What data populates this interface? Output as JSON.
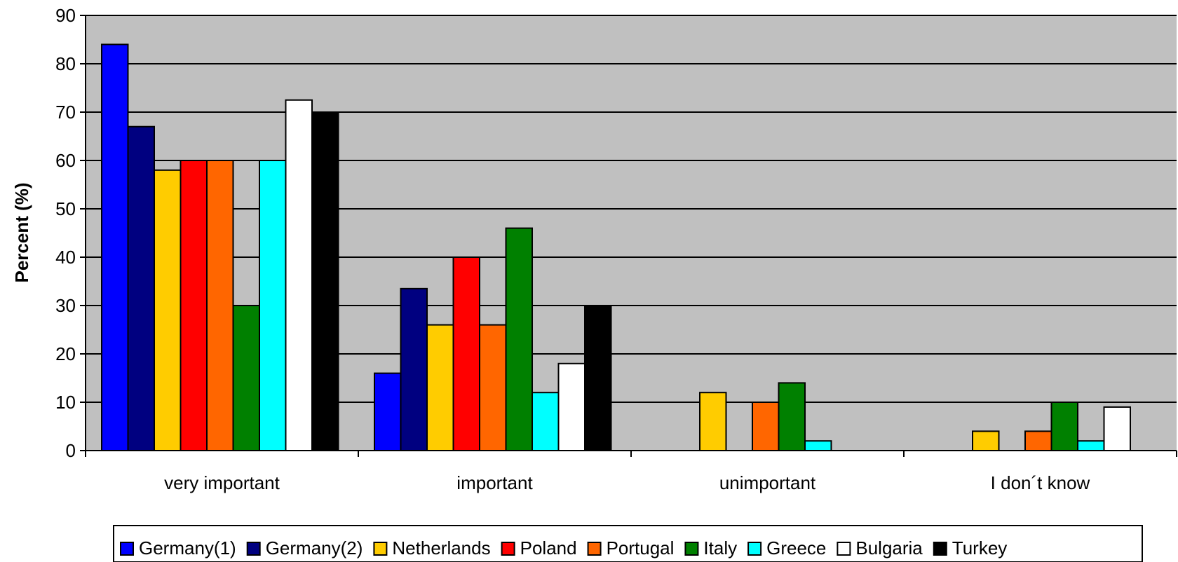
{
  "chart_data": {
    "type": "bar",
    "ylabel": "Percent (%)",
    "xlabel": "",
    "ylim": [
      0,
      90
    ],
    "yticks": [
      0,
      10,
      20,
      30,
      40,
      50,
      60,
      70,
      80,
      90
    ],
    "grid": true,
    "legend_position": "bottom",
    "plot_background": "#C0C0C0",
    "categories": [
      "very important",
      "important",
      "unimportant",
      "I don´t know"
    ],
    "series": [
      {
        "name": "Germany(1)",
        "color": "#0000FF",
        "values": [
          84,
          16,
          0,
          0
        ]
      },
      {
        "name": "Germany(2)",
        "color": "#000080",
        "values": [
          67,
          33.5,
          0,
          0
        ]
      },
      {
        "name": "Netherlands",
        "color": "#FFCC00",
        "values": [
          58,
          26,
          12,
          4
        ]
      },
      {
        "name": "Poland",
        "color": "#FF0000",
        "values": [
          60,
          40,
          0,
          0
        ]
      },
      {
        "name": "Portugal",
        "color": "#FF6600",
        "values": [
          60,
          26,
          10,
          4
        ]
      },
      {
        "name": "Italy",
        "color": "#008000",
        "values": [
          30,
          46,
          14,
          10
        ]
      },
      {
        "name": "Greece",
        "color": "#00FFFF",
        "values": [
          60,
          12,
          2,
          2
        ]
      },
      {
        "name": "Bulgaria",
        "color": "#FFFFFF",
        "values": [
          72.5,
          18,
          0,
          9
        ]
      },
      {
        "name": "Turkey",
        "color": "#000000",
        "values": [
          70,
          30,
          0,
          0
        ]
      }
    ]
  }
}
